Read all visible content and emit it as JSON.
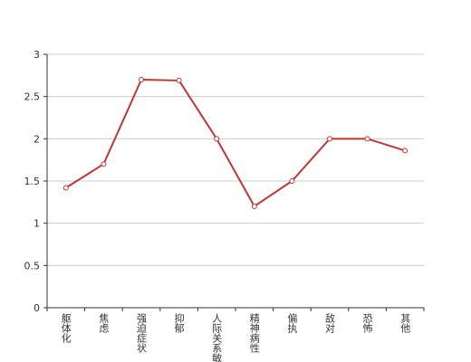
{
  "chart_data": {
    "type": "line",
    "categories": [
      "躯体化",
      "焦虑",
      "强迫症状",
      "抑郁",
      "人际关系敏感",
      "精神病性",
      "偏执",
      "敌对",
      "恐怖",
      "其他"
    ],
    "values": [
      1.42,
      1.7,
      2.7,
      2.69,
      2.0,
      1.2,
      1.5,
      2.0,
      2.0,
      1.86
    ],
    "color": "#c23531",
    "ylim": [
      0,
      3
    ],
    "yticks": [
      0,
      0.5,
      1,
      1.5,
      2,
      2.5,
      3
    ],
    "grid": true
  }
}
